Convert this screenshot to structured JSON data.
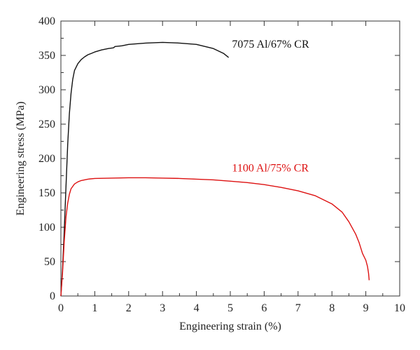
{
  "chart_data": {
    "type": "line",
    "title": "",
    "xlabel": "Engineering strain (%)",
    "ylabel": "Engineering stress (MPa)",
    "xlim": [
      0,
      10
    ],
    "ylim": [
      0,
      400
    ],
    "xticks": [
      0,
      1,
      2,
      3,
      4,
      5,
      6,
      7,
      8,
      9,
      10
    ],
    "yticks": [
      0,
      50,
      100,
      150,
      200,
      250,
      300,
      350,
      400
    ],
    "grid": false,
    "legend": "none",
    "series": [
      {
        "name": "7075 Al/67% CR",
        "color": "#111111",
        "x": [
          0,
          0.05,
          0.1,
          0.15,
          0.2,
          0.25,
          0.3,
          0.35,
          0.4,
          0.5,
          0.6,
          0.7,
          0.8,
          0.9,
          1.0,
          1.2,
          1.4,
          1.55,
          1.6,
          1.8,
          2.0,
          2.5,
          3.0,
          3.5,
          4.0,
          4.5,
          4.8,
          4.95
        ],
        "y": [
          0,
          40,
          95,
          160,
          220,
          265,
          295,
          315,
          328,
          338,
          344,
          348,
          351,
          353,
          355,
          358,
          360,
          361,
          363,
          364,
          366,
          368,
          369,
          368,
          366,
          360,
          353,
          347
        ]
      },
      {
        "name": "1100 Al/75% CR",
        "color": "#dd1111",
        "x": [
          0,
          0.05,
          0.1,
          0.15,
          0.2,
          0.25,
          0.3,
          0.4,
          0.5,
          0.6,
          0.8,
          1.0,
          1.5,
          2.0,
          2.5,
          3.0,
          3.5,
          4.0,
          4.5,
          5.0,
          5.5,
          6.0,
          6.5,
          7.0,
          7.5,
          8.0,
          8.3,
          8.5,
          8.7,
          8.8,
          8.9,
          9.0,
          9.05,
          9.08,
          9.1
        ],
        "y": [
          0,
          35,
          80,
          115,
          135,
          148,
          156,
          163,
          166,
          168,
          170,
          171,
          171.5,
          172,
          172,
          171.5,
          171,
          170,
          169,
          167,
          165,
          162,
          158,
          153,
          146,
          134,
          122,
          108,
          90,
          78,
          62,
          52,
          43,
          33,
          23
        ]
      }
    ],
    "annotations": [
      {
        "text": "7075 Al/67% CR",
        "x": 5.05,
        "y": 361,
        "color": "#111111"
      },
      {
        "text": "1100 Al/75% CR",
        "x": 5.05,
        "y": 181,
        "color": "#dd1111"
      }
    ]
  }
}
